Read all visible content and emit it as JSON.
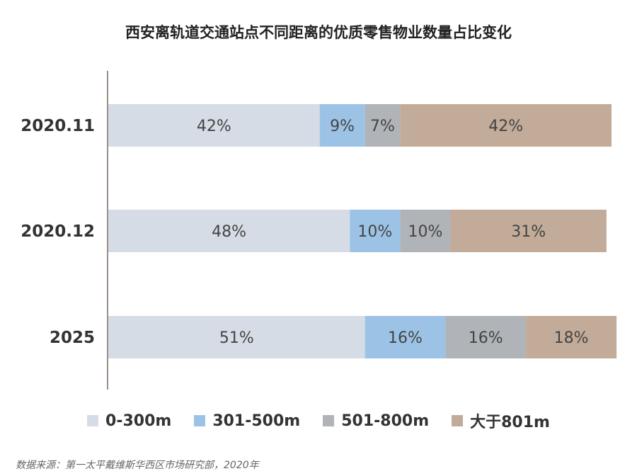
{
  "chart_data": {
    "type": "bar",
    "orientation": "horizontal",
    "stacked": true,
    "title": "西安离轨道交通站点不同距离的优质零售物业数量占比变化",
    "categories": [
      "2020.11",
      "2020.12",
      "2025"
    ],
    "series": [
      {
        "name": "0-300m",
        "values": [
          42,
          48,
          51
        ],
        "labels": [
          "42%",
          "48%",
          "51%"
        ],
        "color": "#d6dce5"
      },
      {
        "name": "301-500m",
        "values": [
          9,
          10,
          16
        ],
        "labels": [
          "9%",
          "10%",
          "16%"
        ],
        "color": "#9cc3e6"
      },
      {
        "name": "501-800m",
        "values": [
          7,
          10,
          16
        ],
        "labels": [
          "7%",
          "10%",
          "16%"
        ],
        "color": "#b0b3b8"
      },
      {
        "name": "大于801m",
        "values": [
          42,
          31,
          18
        ],
        "labels": [
          "42%",
          "31%",
          "18%"
        ],
        "color": "#c2ab98"
      }
    ],
    "xlim": [
      0,
      100
    ],
    "grid": false,
    "legend_position": "bottom"
  },
  "source": "数据来源：第一太平戴维斯华西区市场研究部，2020年"
}
